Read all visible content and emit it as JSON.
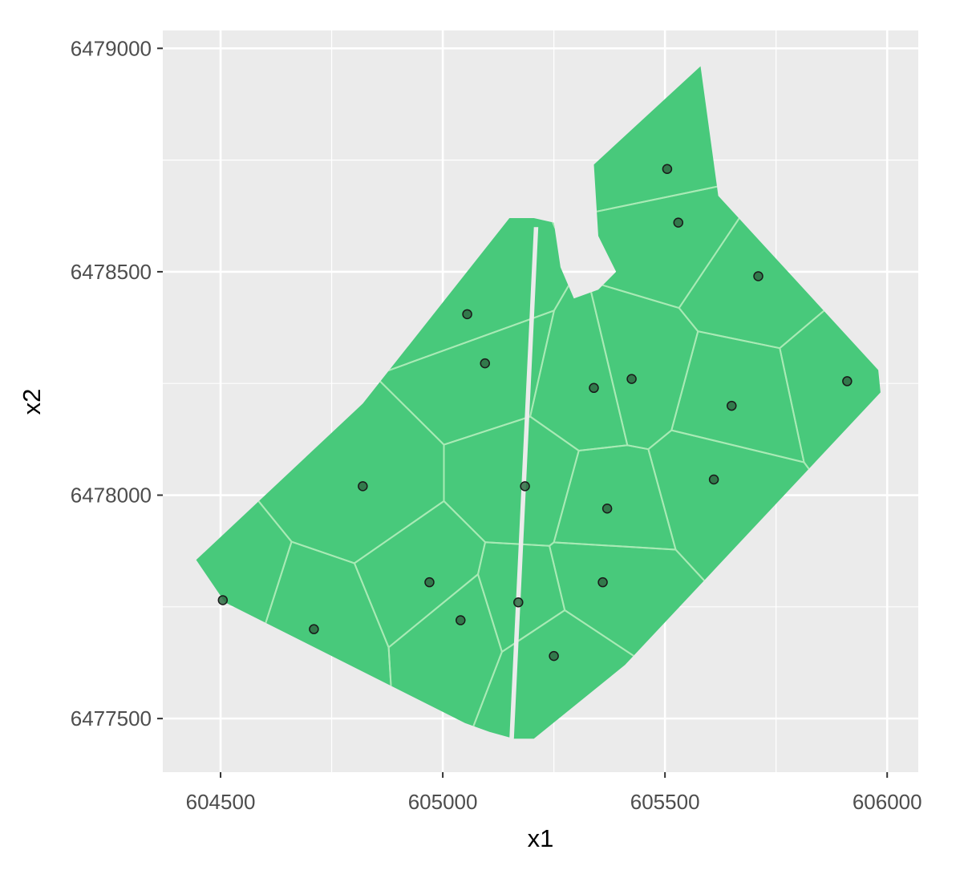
{
  "chart_data": {
    "type": "scatter",
    "title": "",
    "xlabel": "x1",
    "ylabel": "x2",
    "xlim": [
      604370,
      606070
    ],
    "ylim": [
      6477380,
      6479040
    ],
    "x_ticks": [
      604500,
      605000,
      605500,
      606000
    ],
    "y_ticks": [
      6477500,
      6478000,
      6478500,
      6479000
    ],
    "x_tick_labels": [
      "604500",
      "605000",
      "605500",
      "606000"
    ],
    "y_tick_labels": [
      "6477500",
      "6478000",
      "6478500",
      "6479000"
    ],
    "grid": true,
    "colors": {
      "panel": "#ebebeb",
      "grid": "#ffffff",
      "region_fill": "#48c97b",
      "cell_border": "#a8eab5",
      "point": "#2f6b43",
      "point_outline": "#1a1a1a"
    },
    "region_outline": [
      [
        604445,
        6477855
      ],
      [
        604820,
        6478205
      ],
      [
        605150,
        6478620
      ],
      [
        605205,
        6478620
      ],
      [
        605250,
        6478610
      ],
      [
        605265,
        6478510
      ],
      [
        605295,
        6478440
      ],
      [
        605350,
        6478460
      ],
      [
        605390,
        6478500
      ],
      [
        605350,
        6478580
      ],
      [
        605340,
        6478740
      ],
      [
        605580,
        6478960
      ],
      [
        605620,
        6478670
      ],
      [
        605980,
        6478280
      ],
      [
        605985,
        6478230
      ],
      [
        605410,
        6477620
      ],
      [
        605205,
        6477455
      ],
      [
        605160,
        6477455
      ],
      [
        605105,
        6477470
      ],
      [
        605050,
        6477490
      ],
      [
        604510,
        6477760
      ]
    ],
    "points": [
      {
        "x": 604505,
        "y": 6477765
      },
      {
        "x": 604710,
        "y": 6477700
      },
      {
        "x": 604820,
        "y": 6478020
      },
      {
        "x": 604970,
        "y": 6477805
      },
      {
        "x": 605040,
        "y": 6477720
      },
      {
        "x": 605055,
        "y": 6478405
      },
      {
        "x": 605095,
        "y": 6478295
      },
      {
        "x": 605170,
        "y": 6477760
      },
      {
        "x": 605185,
        "y": 6478020
      },
      {
        "x": 605250,
        "y": 6477640
      },
      {
        "x": 605340,
        "y": 6478240
      },
      {
        "x": 605360,
        "y": 6477805
      },
      {
        "x": 605370,
        "y": 6477970
      },
      {
        "x": 605425,
        "y": 6478260
      },
      {
        "x": 605505,
        "y": 6478730
      },
      {
        "x": 605530,
        "y": 6478610
      },
      {
        "x": 605610,
        "y": 6478035
      },
      {
        "x": 605650,
        "y": 6478200
      },
      {
        "x": 605710,
        "y": 6478490
      },
      {
        "x": 605910,
        "y": 6478255
      }
    ]
  }
}
